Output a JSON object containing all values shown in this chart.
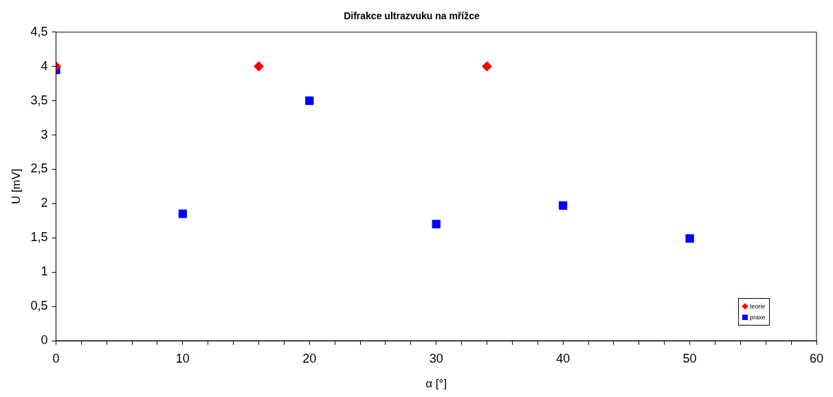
{
  "chart_data": {
    "type": "scatter",
    "title": "Difrakce ultrazvuku na mřížce",
    "xlabel": "α [°]",
    "ylabel": "U [mV]",
    "xlim": [
      0,
      60
    ],
    "xticks": [
      0,
      {
        "value": 2,
        "label": null
      },
      {
        "value": 4,
        "label": null
      },
      {
        "value": 6,
        "label": null
      },
      {
        "value": 8,
        "label": null
      },
      10,
      {
        "value": 12,
        "label": null
      },
      {
        "value": 14,
        "label": null
      },
      {
        "value": 16,
        "label": null
      },
      {
        "value": 18,
        "label": null
      },
      20,
      {
        "value": 22,
        "label": null
      },
      {
        "value": 24,
        "label": null
      },
      {
        "value": 26,
        "label": null
      },
      {
        "value": 28,
        "label": null
      },
      30,
      {
        "value": 32,
        "label": null
      },
      {
        "value": 34,
        "label": null
      },
      {
        "value": 36,
        "label": null
      },
      {
        "value": 38,
        "label": null
      },
      40,
      {
        "value": 42,
        "label": null
      },
      {
        "value": 44,
        "label": null
      },
      {
        "value": 46,
        "label": null
      },
      {
        "value": 48,
        "label": null
      },
      50,
      {
        "value": 52,
        "label": null
      },
      {
        "value": 54,
        "label": null
      },
      {
        "value": 56,
        "label": null
      },
      {
        "value": 58,
        "label": null
      },
      60
    ],
    "ylim": [
      0,
      4.5
    ],
    "yticks": [
      0,
      {
        "value": 0.5,
        "label": "0,5"
      },
      1,
      {
        "value": 1.5,
        "label": "1,5"
      },
      2,
      {
        "value": 2.5,
        "label": "2,5"
      },
      3,
      {
        "value": 3.5,
        "label": "3,5"
      },
      4,
      {
        "value": 4.5,
        "label": "4,5"
      }
    ],
    "grid": false,
    "legend": "bottom right",
    "series": [
      {
        "name": "teorie",
        "color": "#ff0000",
        "marker": "diamond",
        "x": [
          0,
          16,
          34
        ],
        "values": [
          4,
          4,
          4
        ]
      },
      {
        "name": "praxe",
        "color": "#0000ff",
        "marker": "square",
        "x": [
          0,
          10,
          20,
          30,
          40,
          50
        ],
        "values": [
          3.95,
          1.85,
          3.5,
          1.7,
          1.97,
          1.49
        ]
      }
    ]
  }
}
